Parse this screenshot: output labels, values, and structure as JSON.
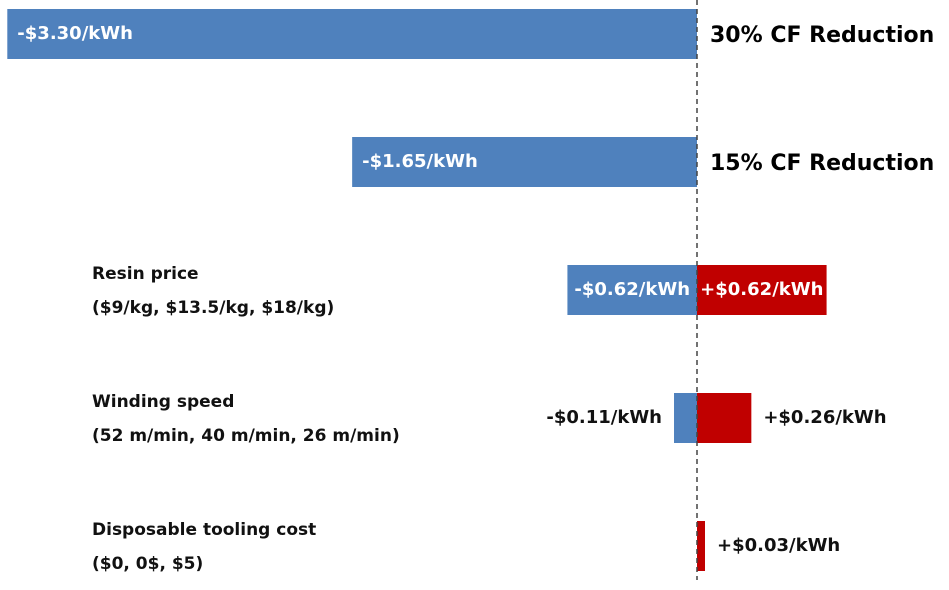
{
  "chart_data": {
    "type": "bar",
    "orientation": "horizontal",
    "subtype": "tornado",
    "colors": {
      "negative": "#4F81BD",
      "positive": "#C00000",
      "baseline": "#444444"
    },
    "categories": [
      {
        "lines": [],
        "side_label": "30% CF Reduction",
        "low": -3.3,
        "high": null,
        "low_label": "-$3.30/kWh",
        "high_label": "",
        "low_label_pos": "inside",
        "high_label_pos": "none"
      },
      {
        "lines": [],
        "side_label": "15% CF Reduction",
        "low": -1.65,
        "high": null,
        "low_label": "-$1.65/kWh",
        "high_label": "",
        "low_label_pos": "inside",
        "high_label_pos": "none"
      },
      {
        "lines": [
          "Resin price",
          "($9/kg, $13.5/kg, $18/kg)"
        ],
        "side_label": "",
        "low": -0.62,
        "high": 0.62,
        "low_label": "-$0.62/kWh",
        "high_label": "+$0.62/kWh",
        "low_label_pos": "inside",
        "high_label_pos": "inside"
      },
      {
        "lines": [
          "Winding speed",
          "(52 m/min, 40 m/min, 26 m/min)"
        ],
        "side_label": "",
        "low": -0.11,
        "high": 0.26,
        "low_label": "-$0.11/kWh",
        "high_label": "+$0.26/kWh",
        "low_label_pos": "outside",
        "high_label_pos": "outside"
      },
      {
        "lines": [
          "Disposable tooling cost",
          "($0, 0$, $5)"
        ],
        "side_label": "",
        "low": null,
        "high": 0.03,
        "low_label": "",
        "high_label": "+$0.03/kWh",
        "low_label_pos": "none",
        "high_label_pos": "outside"
      }
    ],
    "baseline_value": 0,
    "grid": false,
    "legend": "none"
  }
}
